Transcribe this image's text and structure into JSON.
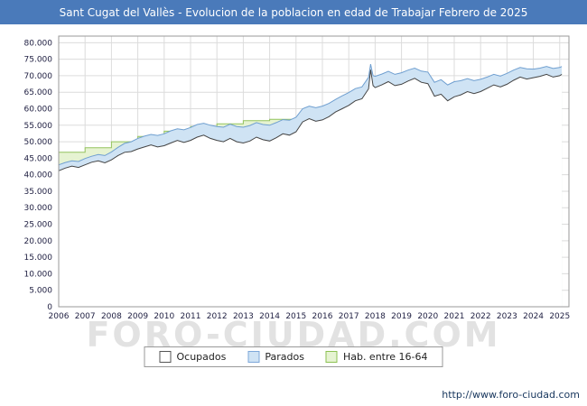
{
  "title_bar": {
    "text": "Sant Cugat del Vallès - Evolucion de la poblacion en edad de Trabajar Febrero de 2025",
    "bg": "#4a7aba"
  },
  "watermark": "FORO-CIUDAD.COM",
  "footer": {
    "url": "http://www.foro-ciudad.com"
  },
  "legend": {
    "items": [
      {
        "label": "Ocupados",
        "fill": "#ffffff",
        "border": "#555555"
      },
      {
        "label": "Parados",
        "fill": "#cfe3f4",
        "border": "#7da7d9"
      },
      {
        "label": "Hab. entre 16-64",
        "fill": "#e6f3d2",
        "border": "#8cc152"
      }
    ]
  },
  "chart_data": {
    "type": "area",
    "title": "Sant Cugat del Vallès - Evolucion de la poblacion en edad de Trabajar Febrero de 2025",
    "xlabel": "",
    "ylabel": "",
    "ylim": [
      0,
      82000
    ],
    "grid": true,
    "legend_position": "bottom",
    "y_ticks": [
      0,
      5000,
      10000,
      15000,
      20000,
      25000,
      30000,
      35000,
      40000,
      45000,
      50000,
      55000,
      60000,
      65000,
      70000,
      75000,
      80000
    ],
    "x_years": [
      2006,
      2007,
      2008,
      2009,
      2010,
      2011,
      2012,
      2013,
      2014,
      2015,
      2016,
      2017,
      2018,
      2019,
      2020,
      2021,
      2022,
      2023,
      2024,
      2025
    ],
    "x": [
      2006,
      2006.25,
      2006.5,
      2006.75,
      2007,
      2007.25,
      2007.5,
      2007.75,
      2008,
      2008.25,
      2008.5,
      2008.75,
      2009,
      2009.25,
      2009.5,
      2009.75,
      2010,
      2010.25,
      2010.5,
      2010.75,
      2011,
      2011.25,
      2011.5,
      2011.75,
      2012,
      2012.25,
      2012.5,
      2012.75,
      2013,
      2013.25,
      2013.5,
      2013.75,
      2014,
      2014.25,
      2014.5,
      2014.75,
      2015,
      2015.25,
      2015.5,
      2015.75,
      2016,
      2016.25,
      2016.5,
      2016.75,
      2017,
      2017.25,
      2017.5,
      2017.75,
      2017.83,
      2017.92,
      2018,
      2018.25,
      2018.5,
      2018.75,
      2019,
      2019.25,
      2019.5,
      2019.75,
      2020,
      2020.25,
      2020.5,
      2020.75,
      2021,
      2021.25,
      2021.5,
      2021.75,
      2022,
      2022.25,
      2022.5,
      2022.75,
      2023,
      2023.25,
      2023.5,
      2023.75,
      2024,
      2024.25,
      2024.5,
      2024.75,
      2025,
      2025.08
    ],
    "series": [
      {
        "name": "Ocupados",
        "fill": "#ffffff",
        "stroke": "#444444",
        "values": [
          41200,
          42000,
          42600,
          42200,
          43000,
          43800,
          44200,
          43600,
          44500,
          45800,
          46800,
          47000,
          47800,
          48400,
          49000,
          48400,
          48800,
          49600,
          50400,
          49800,
          50400,
          51400,
          52000,
          51000,
          50400,
          50000,
          51000,
          50000,
          49600,
          50200,
          51400,
          50600,
          50200,
          51200,
          52400,
          52000,
          53000,
          56000,
          57000,
          56200,
          56600,
          57600,
          59000,
          60000,
          61000,
          62400,
          63000,
          66000,
          71800,
          67000,
          66400,
          67200,
          68200,
          67000,
          67400,
          68400,
          69200,
          68000,
          67600,
          63800,
          64400,
          62400,
          63600,
          64200,
          65200,
          64600,
          65200,
          66200,
          67200,
          66600,
          67400,
          68600,
          69600,
          69000,
          69400,
          69800,
          70400,
          69600,
          70000,
          70400
        ]
      },
      {
        "name": "Parados",
        "fill": "#cfe3f4",
        "stroke": "#6f9fd0",
        "stacked_on": "Ocupados",
        "values": [
          1800,
          1700,
          1600,
          1800,
          1900,
          1800,
          1900,
          2200,
          2400,
          2500,
          2700,
          3000,
          3200,
          3300,
          3200,
          3500,
          3600,
          3700,
          3500,
          3800,
          3900,
          3800,
          3600,
          4000,
          4200,
          4400,
          4300,
          4600,
          4800,
          4700,
          4400,
          4600,
          4800,
          4600,
          4300,
          4500,
          4400,
          4000,
          3800,
          4100,
          4200,
          4000,
          3800,
          3900,
          3900,
          3700,
          3600,
          3500,
          1700,
          3000,
          3400,
          3300,
          3100,
          3400,
          3500,
          3300,
          3100,
          3400,
          3500,
          4200,
          4400,
          4800,
          4600,
          4300,
          3900,
          3900,
          3700,
          3400,
          3200,
          3300,
          3300,
          3100,
          2900,
          3100,
          2600,
          2500,
          2400,
          2600,
          2500,
          2400
        ]
      },
      {
        "name": "Hab. entre 16-64",
        "fill": "#e6f3d2",
        "stroke": "#94c45e",
        "step_by_year": true,
        "x_years": [
          2006,
          2007,
          2008,
          2009,
          2010,
          2011,
          2012,
          2013,
          2014,
          2015,
          2016,
          2017,
          2018,
          2019,
          2020,
          2021,
          2022,
          2023,
          2024,
          2025
        ],
        "values": [
          46800,
          48200,
          50000,
          51600,
          53200,
          54600,
          55400,
          56400,
          56800,
          57400,
          58400,
          60000,
          62000,
          63600,
          64800,
          65200,
          66400,
          68000,
          69600,
          70800
        ]
      }
    ]
  }
}
